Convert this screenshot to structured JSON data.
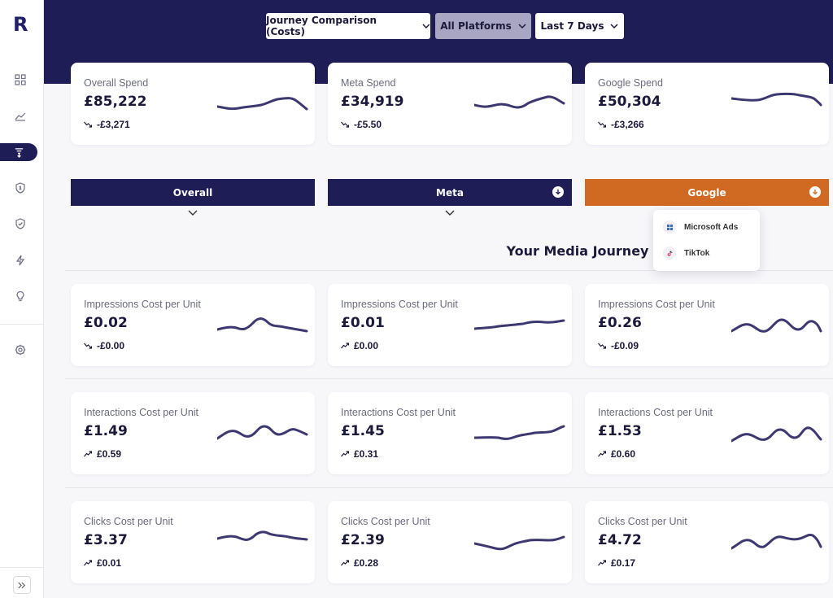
{
  "app": {
    "logo_letter": "R"
  },
  "colors": {
    "navy": "#1f1d55",
    "orange": "#d06a22",
    "spark": "#3d3870"
  },
  "sidebar": {
    "icons": [
      "grid-icon",
      "line-chart-icon",
      "journey-icon",
      "shield-dollar-icon",
      "shield-check-icon",
      "lightning-icon",
      "lightbulb-icon",
      "gear-icon"
    ],
    "active": "journey-icon"
  },
  "filters": {
    "comparison": "Journey Comparison (Costs)",
    "platforms": "All Platforms",
    "range": "Last 7 Days"
  },
  "summary": [
    {
      "label": "Overall Spend",
      "value": "£85,222",
      "change": "-£3,271",
      "trend": "down"
    },
    {
      "label": "Meta Spend",
      "value": "£34,919",
      "change": "-£5.50",
      "trend": "down"
    },
    {
      "label": "Google Spend",
      "value": "£50,304",
      "change": "-£3,266",
      "trend": "down"
    }
  ],
  "tabs": [
    {
      "label": "Overall"
    },
    {
      "label": "Meta"
    },
    {
      "label": "Google"
    }
  ],
  "platform_menu": [
    {
      "label": "Microsoft Ads"
    },
    {
      "label": "TikTok"
    }
  ],
  "section_title": "Your Media Journey",
  "metrics": [
    {
      "label": "Impressions Cost per Unit",
      "value": "£0.02",
      "change": "-£0.00",
      "trend": "down"
    },
    {
      "label": "Impressions Cost per Unit",
      "value": "£0.01",
      "change": "£0.00",
      "trend": "up"
    },
    {
      "label": "Impressions Cost per Unit",
      "value": "£0.26",
      "change": "-£0.09",
      "trend": "down"
    },
    {
      "label": "Interactions Cost per Unit",
      "value": "£1.49",
      "change": "£0.59",
      "trend": "up"
    },
    {
      "label": "Interactions Cost per Unit",
      "value": "£1.45",
      "change": "£0.31",
      "trend": "up"
    },
    {
      "label": "Interactions Cost per Unit",
      "value": "£1.53",
      "change": "£0.60",
      "trend": "up"
    },
    {
      "label": "Clicks Cost per Unit",
      "value": "£3.37",
      "change": "£0.01",
      "trend": "up"
    },
    {
      "label": "Clicks Cost per Unit",
      "value": "£2.39",
      "change": "£0.28",
      "trend": "up"
    },
    {
      "label": "Clicks Cost per Unit",
      "value": "£4.72",
      "change": "£0.17",
      "trend": "up"
    }
  ]
}
